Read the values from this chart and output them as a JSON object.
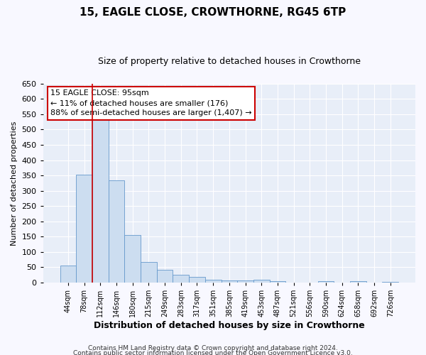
{
  "title1": "15, EAGLE CLOSE, CROWTHORNE, RG45 6TP",
  "title2": "Size of property relative to detached houses in Crowthorne",
  "xlabel": "Distribution of detached houses by size in Crowthorne",
  "ylabel": "Number of detached properties",
  "footer1": "Contains HM Land Registry data © Crown copyright and database right 2024.",
  "footer2": "Contains public sector information licensed under the Open Government Licence v3.0.",
  "bin_labels": [
    "44sqm",
    "78sqm",
    "112sqm",
    "146sqm",
    "180sqm",
    "215sqm",
    "249sqm",
    "283sqm",
    "317sqm",
    "351sqm",
    "385sqm",
    "419sqm",
    "453sqm",
    "487sqm",
    "521sqm",
    "556sqm",
    "590sqm",
    "624sqm",
    "658sqm",
    "692sqm",
    "726sqm"
  ],
  "bar_heights": [
    55,
    352,
    540,
    335,
    155,
    68,
    42,
    25,
    18,
    10,
    7,
    7,
    10,
    5,
    0,
    0,
    5,
    0,
    5,
    0,
    3
  ],
  "bar_color": "#ccddf0",
  "bar_edge_color": "#6699cc",
  "vline_color": "#cc0000",
  "vline_x": 1.5,
  "ylim": [
    0,
    650
  ],
  "yticks": [
    0,
    50,
    100,
    150,
    200,
    250,
    300,
    350,
    400,
    450,
    500,
    550,
    600,
    650
  ],
  "annotation_title": "15 EAGLE CLOSE: 95sqm",
  "annotation_line2": "← 11% of detached houses are smaller (176)",
  "annotation_line3": "88% of semi-detached houses are larger (1,407) →",
  "annotation_box_color": "#cc0000",
  "axes_bg_color": "#e8eef8",
  "fig_bg_color": "#f8f8ff",
  "grid_color": "#ffffff",
  "title1_fontsize": 11,
  "title2_fontsize": 9,
  "xlabel_fontsize": 9,
  "ylabel_fontsize": 8,
  "footer_fontsize": 6.5,
  "ann_fontsize": 8
}
